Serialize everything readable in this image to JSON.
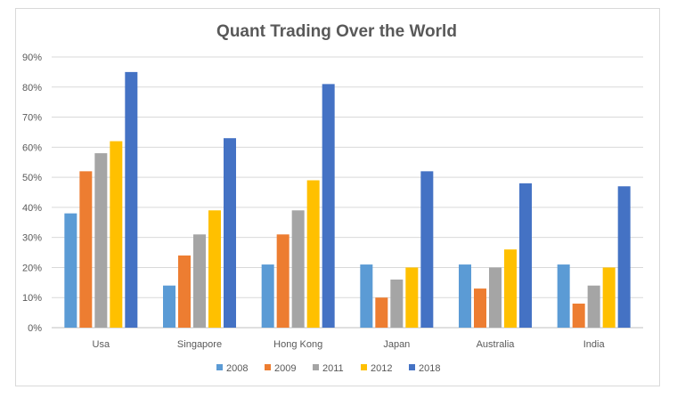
{
  "chart_data": {
    "type": "bar",
    "title": "Quant Trading Over the World",
    "xlabel": "",
    "ylabel": "",
    "ylim": [
      0,
      90
    ],
    "y_tick_labels": [
      "0%",
      "10%",
      "20%",
      "30%",
      "40%",
      "50%",
      "60%",
      "70%",
      "80%",
      "90%"
    ],
    "y_ticks": [
      0,
      10,
      20,
      30,
      40,
      50,
      60,
      70,
      80,
      90
    ],
    "grid": true,
    "legend_position": "bottom",
    "categories": [
      "Usa",
      "Singapore",
      "Hong Kong",
      "Japan",
      "Australia",
      "India"
    ],
    "series": [
      {
        "name": "2008",
        "color": "#5b9bd5",
        "values": [
          38,
          14,
          21,
          21,
          21,
          21
        ]
      },
      {
        "name": "2009",
        "color": "#ed7d31",
        "values": [
          52,
          24,
          31,
          10,
          13,
          8
        ]
      },
      {
        "name": "2011",
        "color": "#a5a5a5",
        "values": [
          58,
          31,
          39,
          16,
          20,
          14
        ]
      },
      {
        "name": "2012",
        "color": "#ffc000",
        "values": [
          62,
          39,
          49,
          20,
          26,
          20
        ]
      },
      {
        "name": "2018",
        "color": "#4472c4",
        "values": [
          85,
          63,
          81,
          52,
          48,
          47
        ]
      }
    ]
  }
}
